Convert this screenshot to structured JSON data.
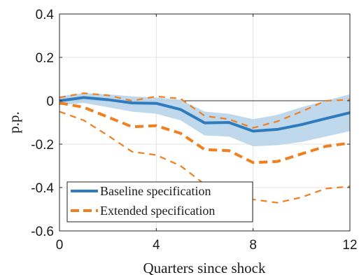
{
  "chart_data": {
    "type": "line",
    "xlabel": "Quarters since shock",
    "ylabel": "p.p.",
    "xlim": [
      0,
      12
    ],
    "ylim": [
      -0.6,
      0.4
    ],
    "xticks": [
      0,
      4,
      8,
      12
    ],
    "xtick_labels": [
      "0",
      "4",
      "8",
      "12"
    ],
    "yticks": [
      0.4,
      0.2,
      0,
      -0.2,
      -0.4,
      -0.6
    ],
    "ytick_labels": [
      "0.4",
      "0.2",
      "0",
      "-0.2",
      "-0.4",
      "-0.6"
    ],
    "grid": true,
    "zero_line": true,
    "legend_position": "bottom-left",
    "x": [
      0,
      1,
      2,
      3,
      4,
      5,
      6,
      7,
      8,
      9,
      10,
      11,
      12
    ],
    "series": [
      {
        "name": "Baseline specification",
        "role": "point_estimate",
        "style": "solid",
        "color": "#2e7bbf",
        "values": [
          0.0,
          0.015,
          0.005,
          -0.01,
          -0.012,
          -0.04,
          -0.102,
          -0.1,
          -0.14,
          -0.132,
          -0.11,
          -0.082,
          -0.055
        ]
      },
      {
        "name": "Baseline specification band",
        "role": "confidence_band",
        "color": "#bcd6ea",
        "upper": [
          0.02,
          0.035,
          0.03,
          0.02,
          0.015,
          0.005,
          -0.05,
          -0.06,
          -0.085,
          -0.065,
          -0.03,
          0.0,
          0.03
        ],
        "lower": [
          -0.02,
          -0.01,
          -0.03,
          -0.05,
          -0.06,
          -0.09,
          -0.16,
          -0.165,
          -0.21,
          -0.205,
          -0.19,
          -0.165,
          -0.14
        ]
      },
      {
        "name": "Extended specification",
        "role": "point_estimate",
        "style": "dashed",
        "color": "#f07f1f",
        "values": [
          -0.01,
          -0.03,
          -0.075,
          -0.12,
          -0.115,
          -0.15,
          -0.225,
          -0.23,
          -0.285,
          -0.28,
          -0.245,
          -0.21,
          -0.195
        ]
      },
      {
        "name": "Extended specification upper bound",
        "role": "bound",
        "style": "thin-dashed",
        "color": "#f07f1f",
        "values": [
          0.015,
          0.035,
          0.025,
          0.0,
          0.02,
          0.01,
          -0.07,
          -0.085,
          -0.125,
          -0.095,
          -0.05,
          0.0,
          0.005
        ]
      },
      {
        "name": "Extended specification lower bound",
        "role": "bound",
        "style": "thin-dashed",
        "color": "#f07f1f",
        "values": [
          -0.05,
          -0.09,
          -0.16,
          -0.235,
          -0.25,
          -0.3,
          -0.385,
          -0.4,
          -0.455,
          -0.47,
          -0.445,
          -0.405,
          -0.395
        ]
      }
    ],
    "legend": [
      {
        "label": "Baseline specification",
        "style": "solid",
        "color": "#2e7bbf"
      },
      {
        "label": "Extended specification",
        "style": "dashed",
        "color": "#f07f1f"
      }
    ]
  }
}
